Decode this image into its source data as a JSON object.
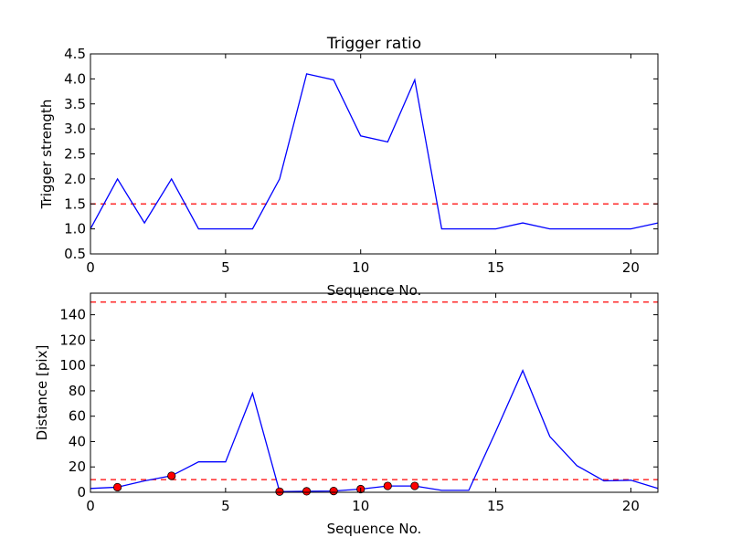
{
  "chart_data": [
    {
      "type": "line",
      "title": "Trigger ratio",
      "xlabel": "Sequence No.",
      "ylabel": "Trigger strength",
      "xlim": [
        0,
        21
      ],
      "ylim": [
        0.5,
        4.5
      ],
      "xticks": [
        0,
        5,
        10,
        15,
        20
      ],
      "xtick_labels": [
        "0",
        "5",
        "10",
        "15",
        "20"
      ],
      "yticks": [
        0.5,
        1.0,
        1.5,
        2.0,
        2.5,
        3.0,
        3.5,
        4.0,
        4.5
      ],
      "ytick_labels": [
        "0.5",
        "1.0",
        "1.5",
        "2.0",
        "2.5",
        "3.0",
        "3.5",
        "4.0",
        "4.5"
      ],
      "grid": false,
      "series": [
        {
          "color": "#0000ff",
          "style": "solid",
          "x": [
            0,
            1,
            2,
            3,
            4,
            5,
            6,
            7,
            8,
            9,
            10,
            11,
            12,
            13,
            14,
            15,
            16,
            17,
            18,
            19,
            20,
            21
          ],
          "values": [
            1.0,
            2.0,
            1.12,
            2.0,
            1.0,
            1.0,
            1.0,
            2.0,
            4.1,
            3.98,
            2.86,
            2.74,
            3.98,
            1.0,
            1.0,
            1.0,
            1.12,
            1.0,
            1.0,
            1.0,
            1.0,
            1.12
          ]
        }
      ],
      "hlines": [
        {
          "y": 1.5,
          "color": "#ff0000",
          "style": "dashed"
        }
      ]
    },
    {
      "type": "line",
      "title": "",
      "xlabel": "Sequence No.",
      "ylabel": "Distance [pix]",
      "xlim": [
        0,
        21
      ],
      "ylim": [
        0,
        157
      ],
      "xticks": [
        0,
        5,
        10,
        15,
        20
      ],
      "xtick_labels": [
        "0",
        "5",
        "10",
        "15",
        "20"
      ],
      "yticks": [
        0,
        20,
        40,
        60,
        80,
        100,
        120,
        140
      ],
      "ytick_labels": [
        "0",
        "20",
        "40",
        "60",
        "80",
        "100",
        "120",
        "140"
      ],
      "grid": false,
      "series": [
        {
          "color": "#0000ff",
          "style": "solid",
          "x": [
            0,
            1,
            2,
            3,
            4,
            5,
            6,
            7,
            8,
            9,
            10,
            11,
            12,
            13,
            14,
            15,
            16,
            17,
            18,
            19,
            20,
            21
          ],
          "values": [
            3,
            4,
            9,
            13,
            24,
            24,
            78,
            0.5,
            0.8,
            1,
            2.5,
            5,
            5,
            1.5,
            1.5,
            48,
            96,
            44,
            21,
            9,
            9.5,
            3
          ]
        },
        {
          "type": "scatter",
          "color": "#ff0000",
          "x": [
            1,
            3,
            7,
            8,
            9,
            10,
            11,
            12
          ],
          "values": [
            4,
            13,
            0.5,
            0.8,
            1,
            2.5,
            5,
            5
          ]
        }
      ],
      "hlines": [
        {
          "y": 10,
          "color": "#ff0000",
          "style": "dashed"
        },
        {
          "y": 150,
          "color": "#ff0000",
          "style": "dashed"
        }
      ]
    }
  ]
}
